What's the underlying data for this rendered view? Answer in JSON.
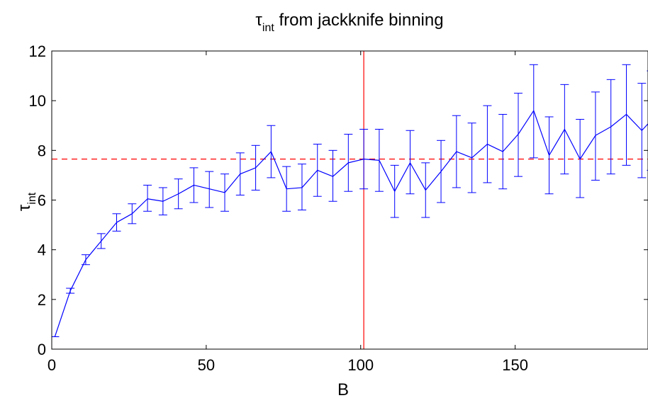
{
  "chart_data": {
    "type": "line",
    "title": {
      "main": "τ",
      "sub": "int",
      "rest": " from jackknife binning"
    },
    "xlabel": "B",
    "ylabel": {
      "main": "τ",
      "sub": "int"
    },
    "xlim": [
      0,
      193
    ],
    "ylim": [
      0,
      12
    ],
    "xticks": [
      0,
      50,
      100,
      150
    ],
    "yticks": [
      0,
      2,
      4,
      6,
      8,
      10,
      12
    ],
    "grid": false,
    "series": [
      {
        "color": "#0000ff",
        "x": [
          1,
          6,
          11,
          16,
          21,
          26,
          31,
          36,
          41,
          46,
          51,
          56,
          61,
          66,
          71,
          76,
          81,
          86,
          91,
          96,
          101,
          106,
          111,
          116,
          121,
          126,
          131,
          136,
          141,
          146,
          151,
          156,
          161,
          166,
          171,
          176,
          181,
          186,
          191,
          194
        ],
        "y": [
          0.5,
          2.35,
          3.6,
          4.35,
          5.1,
          5.45,
          6.05,
          5.95,
          6.25,
          6.6,
          6.45,
          6.3,
          7.05,
          7.3,
          7.95,
          6.45,
          6.5,
          7.2,
          6.95,
          7.5,
          7.65,
          7.6,
          6.35,
          7.5,
          6.4,
          7.15,
          7.95,
          7.7,
          8.25,
          7.95,
          8.65,
          9.6,
          7.8,
          8.85,
          7.65,
          8.6,
          8.95,
          9.45,
          8.8,
          9.2
        ],
        "err_low": [
          0.5,
          2.25,
          3.4,
          4.05,
          4.75,
          5.05,
          5.55,
          5.4,
          5.65,
          5.9,
          5.7,
          5.55,
          6.2,
          6.4,
          6.9,
          5.55,
          5.6,
          6.15,
          5.95,
          6.35,
          6.45,
          6.35,
          5.3,
          6.25,
          5.3,
          5.9,
          6.5,
          6.3,
          6.7,
          6.45,
          6.95,
          7.7,
          6.25,
          7.05,
          6.1,
          6.8,
          7.05,
          7.4,
          6.9,
          7.2
        ],
        "err_high": [
          0.5,
          2.45,
          3.8,
          4.65,
          5.45,
          5.85,
          6.6,
          6.5,
          6.85,
          7.3,
          7.15,
          7.05,
          7.9,
          8.2,
          9.0,
          7.35,
          7.45,
          8.25,
          8.0,
          8.65,
          8.85,
          8.85,
          7.4,
          8.8,
          7.5,
          8.4,
          9.4,
          9.1,
          9.8,
          9.45,
          10.3,
          11.45,
          9.35,
          10.65,
          9.25,
          10.35,
          10.85,
          11.45,
          10.7,
          11.2
        ]
      }
    ],
    "hline": {
      "y": 7.65,
      "color": "#ff0000",
      "style": "dashed"
    },
    "vline": {
      "x": 101,
      "color": "#ff0000",
      "style": "solid"
    }
  }
}
